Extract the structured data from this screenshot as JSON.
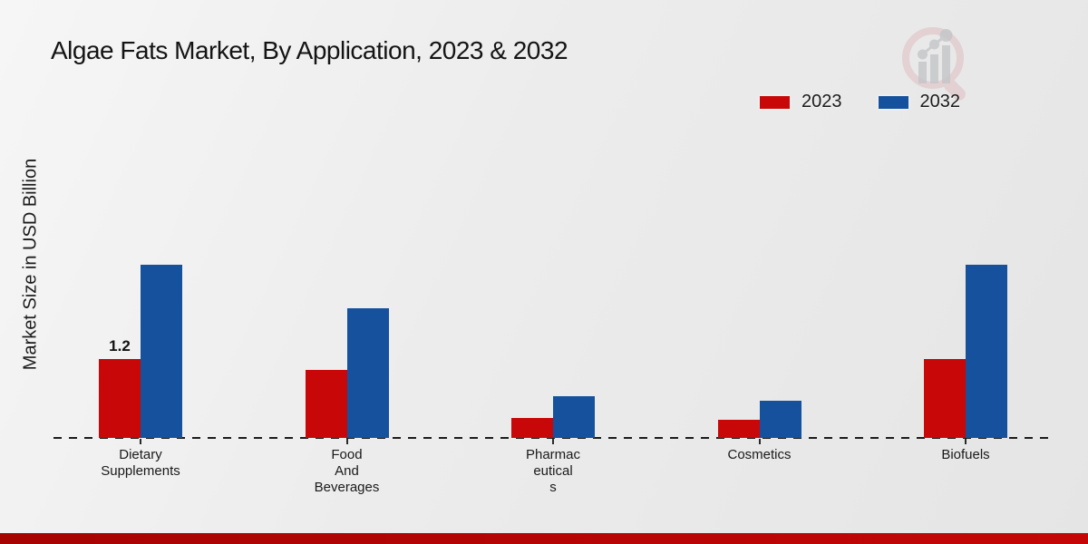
{
  "chart_data": {
    "type": "bar",
    "title": "Algae Fats Market, By Application, 2023 & 2032",
    "xlabel": "",
    "ylabel": "Market Size in USD Billion",
    "unit": "USD Billion",
    "categories": [
      "Dietary Supplements",
      "Food And Beverages",
      "Pharmaceuticals",
      "Cosmetics",
      "Biofuels"
    ],
    "category_display_lines": [
      [
        "Dietary",
        "Supplements"
      ],
      [
        "Food",
        "And",
        "Beverages"
      ],
      [
        "Pharmac",
        "eutical",
        "s"
      ],
      [
        "Cosmetics"
      ],
      [
        "Biofuels"
      ]
    ],
    "series": [
      {
        "name": "2023",
        "color": "#c80708",
        "values": [
          1.2,
          1.03,
          0.31,
          0.27,
          1.2
        ]
      },
      {
        "name": "2032",
        "color": "#15519c",
        "values": [
          2.63,
          1.97,
          0.64,
          0.56,
          2.63
        ]
      }
    ],
    "data_labels": [
      {
        "series_index": 0,
        "category_index": 0,
        "text": "1.2"
      }
    ],
    "axis": {
      "baseline_style": "dashed",
      "y_ticks_visible": false,
      "gridlines": false,
      "ylim": [
        0,
        3
      ]
    },
    "legend_position": "top-right"
  },
  "branding": {
    "watermark_icon": "magnifier-bar-chart-logo",
    "accent_bar_color_left": "#a60303",
    "accent_bar_color_right": "#c40606"
  }
}
